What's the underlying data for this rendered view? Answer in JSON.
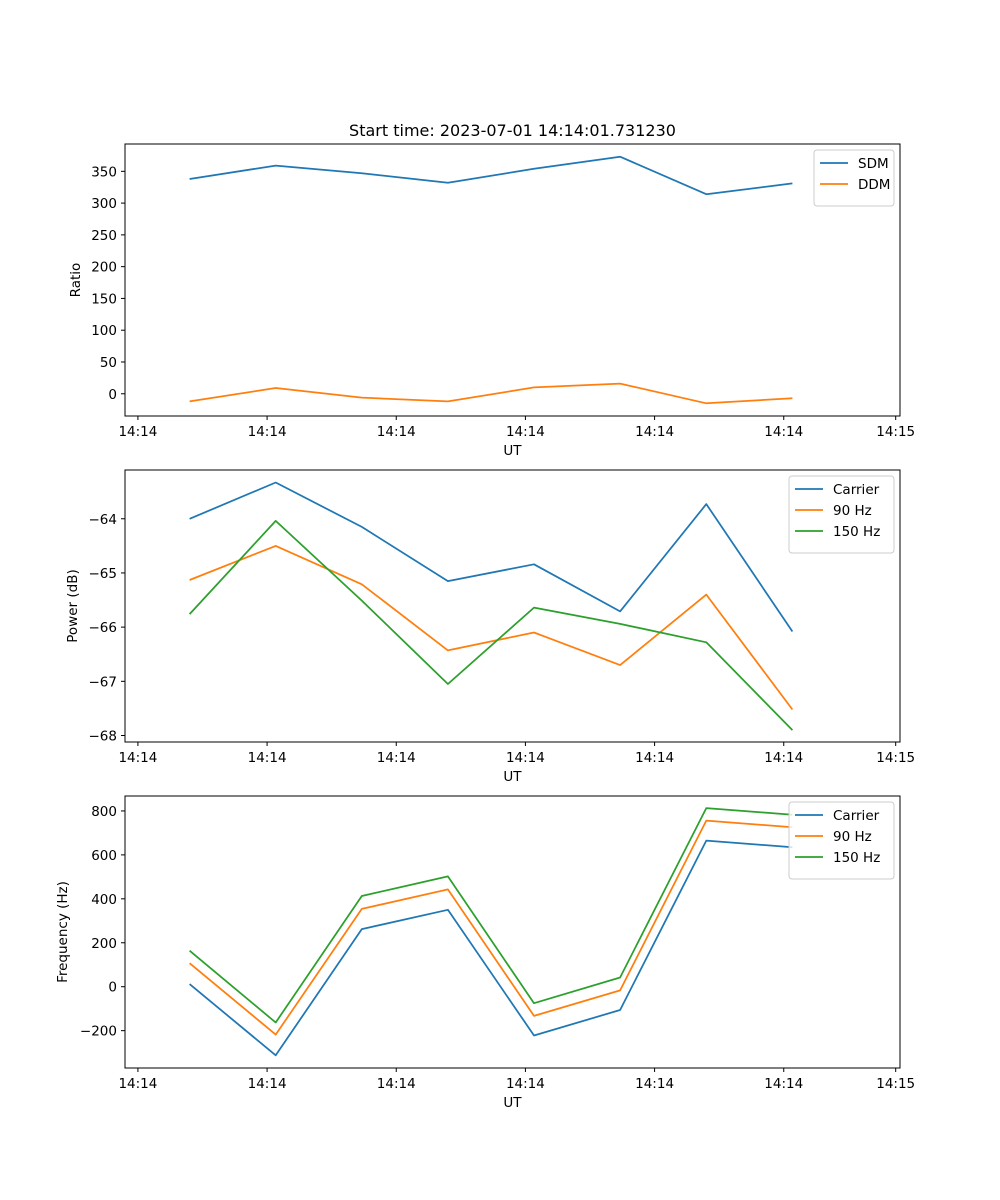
{
  "colors": {
    "blue": "#1f77b4",
    "orange": "#ff7f0e",
    "green": "#2ca02c"
  },
  "chart_data": [
    {
      "type": "line",
      "title": "Start time: 2023-07-01 14:14:01.731230",
      "xlabel": "UT",
      "ylabel": "Ratio",
      "x": [
        1,
        2,
        3,
        4,
        5,
        6,
        7,
        8
      ],
      "xlim": [
        0.25,
        9.25
      ],
      "xticks": [
        {
          "value": 0.4,
          "label": "14:14"
        },
        {
          "value": 1.9,
          "label": "14:14"
        },
        {
          "value": 3.4,
          "label": "14:14"
        },
        {
          "value": 4.9,
          "label": "14:14"
        },
        {
          "value": 6.4,
          "label": "14:14"
        },
        {
          "value": 7.9,
          "label": "14:14"
        },
        {
          "value": 9.2,
          "label": "14:15"
        }
      ],
      "ylim": [
        -35,
        393
      ],
      "yticks": [
        0,
        50,
        100,
        150,
        200,
        250,
        300,
        350
      ],
      "legend_location": "upper right",
      "series": [
        {
          "name": "SDM",
          "color": "blue",
          "values": [
            338,
            359,
            347,
            332,
            354,
            373,
            314,
            331
          ]
        },
        {
          "name": "DDM",
          "color": "orange",
          "values": [
            -12,
            9,
            -6,
            -12,
            10,
            16,
            -15,
            -7
          ]
        }
      ]
    },
    {
      "type": "line",
      "title": "",
      "xlabel": "UT",
      "ylabel": "Power (dB)",
      "x": [
        1,
        2,
        3,
        4,
        5,
        6,
        7,
        8
      ],
      "xlim": [
        0.25,
        9.25
      ],
      "xticks": [
        {
          "value": 0.4,
          "label": "14:14"
        },
        {
          "value": 1.9,
          "label": "14:14"
        },
        {
          "value": 3.4,
          "label": "14:14"
        },
        {
          "value": 4.9,
          "label": "14:14"
        },
        {
          "value": 6.4,
          "label": "14:14"
        },
        {
          "value": 7.9,
          "label": "14:14"
        },
        {
          "value": 9.2,
          "label": "14:15"
        }
      ],
      "ylim": [
        -68.12,
        -63.1
      ],
      "yticks": [
        -68,
        -67,
        -66,
        -65,
        -64
      ],
      "legend_location": "upper right",
      "series": [
        {
          "name": "Carrier",
          "color": "blue",
          "values": [
            -64.0,
            -63.33,
            -64.15,
            -65.15,
            -64.84,
            -65.71,
            -63.73,
            -66.08
          ]
        },
        {
          "name": "90 Hz",
          "color": "orange",
          "values": [
            -65.13,
            -64.5,
            -65.21,
            -66.43,
            -66.1,
            -66.7,
            -65.4,
            -67.52
          ]
        },
        {
          "name": "150 Hz",
          "color": "green",
          "values": [
            -65.76,
            -64.04,
            -65.51,
            -67.05,
            -65.64,
            -65.94,
            -66.28,
            -67.9
          ]
        }
      ]
    },
    {
      "type": "line",
      "title": "",
      "xlabel": "UT",
      "ylabel": "Frequency (Hz)",
      "x": [
        1,
        2,
        3,
        4,
        5,
        6,
        7,
        8
      ],
      "xlim": [
        0.25,
        9.25
      ],
      "xticks": [
        {
          "value": 0.4,
          "label": "14:14"
        },
        {
          "value": 1.9,
          "label": "14:14"
        },
        {
          "value": 3.4,
          "label": "14:14"
        },
        {
          "value": 4.9,
          "label": "14:14"
        },
        {
          "value": 6.4,
          "label": "14:14"
        },
        {
          "value": 7.9,
          "label": "14:14"
        },
        {
          "value": 9.2,
          "label": "14:15"
        }
      ],
      "ylim": [
        -370,
        868
      ],
      "yticks": [
        -200,
        0,
        200,
        400,
        600,
        800
      ],
      "legend_location": "upper right",
      "series": [
        {
          "name": "Carrier",
          "color": "blue",
          "values": [
            12,
            -312,
            262,
            350,
            -222,
            -106,
            665,
            635
          ]
        },
        {
          "name": "90 Hz",
          "color": "orange",
          "values": [
            107,
            -218,
            354,
            443,
            -133,
            -17,
            756,
            726
          ]
        },
        {
          "name": "150 Hz",
          "color": "green",
          "values": [
            164,
            -163,
            413,
            502,
            -75,
            42,
            813,
            783
          ]
        }
      ]
    }
  ]
}
